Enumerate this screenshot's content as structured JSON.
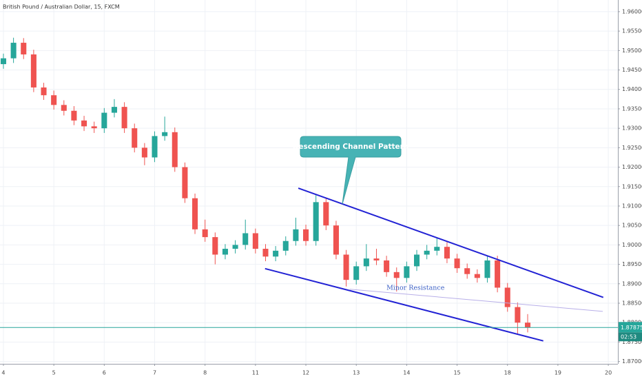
{
  "chart_data": {
    "type": "candlestick",
    "title": "British Pound / Australian Dollar, 15, FXCM",
    "x": [
      0,
      0.2,
      0.4,
      0.6,
      0.8,
      1.0,
      1.2,
      1.4,
      1.6,
      1.8,
      2.0,
      2.2,
      2.4,
      2.6,
      2.8,
      3.0,
      3.2,
      3.4,
      3.6,
      3.8,
      4.0,
      4.2,
      4.4,
      4.6,
      4.8,
      5.0,
      5.2,
      5.4,
      5.6,
      5.8,
      6.0,
      6.2,
      6.4,
      6.6,
      6.8,
      7.0,
      7.2,
      7.4,
      7.6,
      7.8,
      8.0,
      8.2,
      8.4,
      8.6,
      8.8,
      9.0,
      9.2,
      9.4,
      9.6,
      9.8,
      10.0,
      10.2,
      10.4
    ],
    "open": [
      1.9465,
      1.948,
      1.952,
      1.949,
      1.9405,
      1.9385,
      1.936,
      1.9345,
      1.932,
      1.9305,
      1.93,
      1.934,
      1.9355,
      1.93,
      1.925,
      1.9225,
      1.928,
      1.929,
      1.92,
      1.912,
      1.904,
      1.902,
      1.8975,
      1.899,
      1.9,
      1.903,
      1.899,
      1.897,
      1.8985,
      1.901,
      1.904,
      1.901,
      1.911,
      1.905,
      1.8975,
      1.891,
      1.8945,
      1.8965,
      1.896,
      1.893,
      1.8915,
      1.8945,
      1.8975,
      1.8985,
      1.8995,
      1.8965,
      1.894,
      1.8925,
      1.8915,
      1.896,
      1.889,
      1.884,
      1.88
    ],
    "high": [
      1.9492,
      1.9533,
      1.9532,
      1.9502,
      1.9417,
      1.9397,
      1.9372,
      1.9357,
      1.9332,
      1.9317,
      1.9352,
      1.9375,
      1.9367,
      1.9312,
      1.9262,
      1.9292,
      1.933,
      1.9302,
      1.9212,
      1.9132,
      1.9065,
      1.9032,
      1.9002,
      1.9012,
      1.9065,
      1.9042,
      1.9002,
      1.8997,
      1.9022,
      1.907,
      1.9052,
      1.9128,
      1.9122,
      1.9062,
      1.8987,
      1.8957,
      1.9002,
      1.899,
      1.8972,
      1.8942,
      1.8957,
      1.8987,
      1.9,
      1.9017,
      1.9007,
      1.8977,
      1.8952,
      1.8937,
      1.8972,
      1.8972,
      1.8902,
      1.8852,
      1.8822
    ],
    "low": [
      1.9453,
      1.9468,
      1.9478,
      1.9393,
      1.9373,
      1.9348,
      1.9333,
      1.9308,
      1.9293,
      1.9288,
      1.9288,
      1.9328,
      1.9288,
      1.9238,
      1.9205,
      1.9213,
      1.9268,
      1.9188,
      1.9108,
      1.9028,
      1.9008,
      1.895,
      1.8963,
      1.8978,
      1.8988,
      1.8978,
      1.8958,
      1.8958,
      1.8973,
      1.8998,
      1.8998,
      1.8998,
      1.9038,
      1.8963,
      1.8893,
      1.8898,
      1.8933,
      1.8948,
      1.8918,
      1.888,
      1.8903,
      1.8933,
      1.8963,
      1.8973,
      1.8953,
      1.8928,
      1.8913,
      1.8903,
      1.8903,
      1.8878,
      1.8828,
      1.8772,
      1.8775
    ],
    "close": [
      1.948,
      1.952,
      1.949,
      1.9405,
      1.9385,
      1.936,
      1.9345,
      1.932,
      1.9305,
      1.93,
      1.934,
      1.9355,
      1.93,
      1.925,
      1.9225,
      1.928,
      1.929,
      1.92,
      1.912,
      1.904,
      1.902,
      1.8975,
      1.899,
      1.9,
      1.903,
      1.899,
      1.897,
      1.8985,
      1.901,
      1.904,
      1.901,
      1.911,
      1.905,
      1.8975,
      1.891,
      1.8945,
      1.8965,
      1.896,
      1.893,
      1.8915,
      1.8945,
      1.8975,
      1.8985,
      1.8995,
      1.8965,
      1.894,
      1.8925,
      1.8915,
      1.896,
      1.889,
      1.884,
      1.88,
      1.87875
    ],
    "up_color": "#26a69a",
    "down_color": "#ef5350",
    "xlim": [
      -0.068,
      12.19
    ],
    "xticks": [
      {
        "value": 0,
        "label": "4"
      },
      {
        "value": 1,
        "label": "5"
      },
      {
        "value": 2,
        "label": "6"
      },
      {
        "value": 3,
        "label": "7"
      },
      {
        "value": 4,
        "label": "8"
      },
      {
        "value": 5,
        "label": "11"
      },
      {
        "value": 6,
        "label": "12"
      },
      {
        "value": 7,
        "label": "13"
      },
      {
        "value": 8,
        "label": "14"
      },
      {
        "value": 9,
        "label": "15"
      },
      {
        "value": 10,
        "label": "18"
      },
      {
        "value": 11,
        "label": "19"
      },
      {
        "value": 12,
        "label": "20"
      }
    ],
    "ylim": [
      1.8694,
      1.963
    ],
    "yticks": [
      {
        "value": 1.87,
        "label": "1.87000"
      },
      {
        "value": 1.875,
        "label": "1.87500"
      },
      {
        "value": 1.88,
        "label": "1.88000"
      },
      {
        "value": 1.885,
        "label": "1.88500"
      },
      {
        "value": 1.89,
        "label": "1.89000"
      },
      {
        "value": 1.895,
        "label": "1.89500"
      },
      {
        "value": 1.9,
        "label": "1.90000"
      },
      {
        "value": 1.905,
        "label": "1.90500"
      },
      {
        "value": 1.91,
        "label": "1.91000"
      },
      {
        "value": 1.915,
        "label": "1.91500"
      },
      {
        "value": 1.92,
        "label": "1.92000"
      },
      {
        "value": 1.925,
        "label": "1.92500"
      },
      {
        "value": 1.93,
        "label": "1.93000"
      },
      {
        "value": 1.935,
        "label": "1.93500"
      },
      {
        "value": 1.94,
        "label": "1.94000"
      },
      {
        "value": 1.945,
        "label": "1.94500"
      },
      {
        "value": 1.95,
        "label": "1.95000"
      },
      {
        "value": 1.955,
        "label": "1.95500"
      },
      {
        "value": 1.96,
        "label": "1.96000"
      }
    ],
    "grid": true,
    "countdown": "02:53",
    "price_line_color": "#26a69a",
    "trendlines": [
      {
        "x": [
          5.85,
          11.9
        ],
        "y": [
          1.9146,
          1.8865
        ],
        "color": "#2222d4"
      },
      {
        "x": [
          5.19,
          10.71
        ],
        "y": [
          1.8939,
          1.8753
        ],
        "color": "#2222d4"
      },
      {
        "x": [
          6.87,
          11.89
        ],
        "y": [
          1.8886,
          1.8829
        ],
        "color": "#b7aee8",
        "label": "Minor Resistance"
      }
    ],
    "callout": "Descending Channel Pattern"
  }
}
